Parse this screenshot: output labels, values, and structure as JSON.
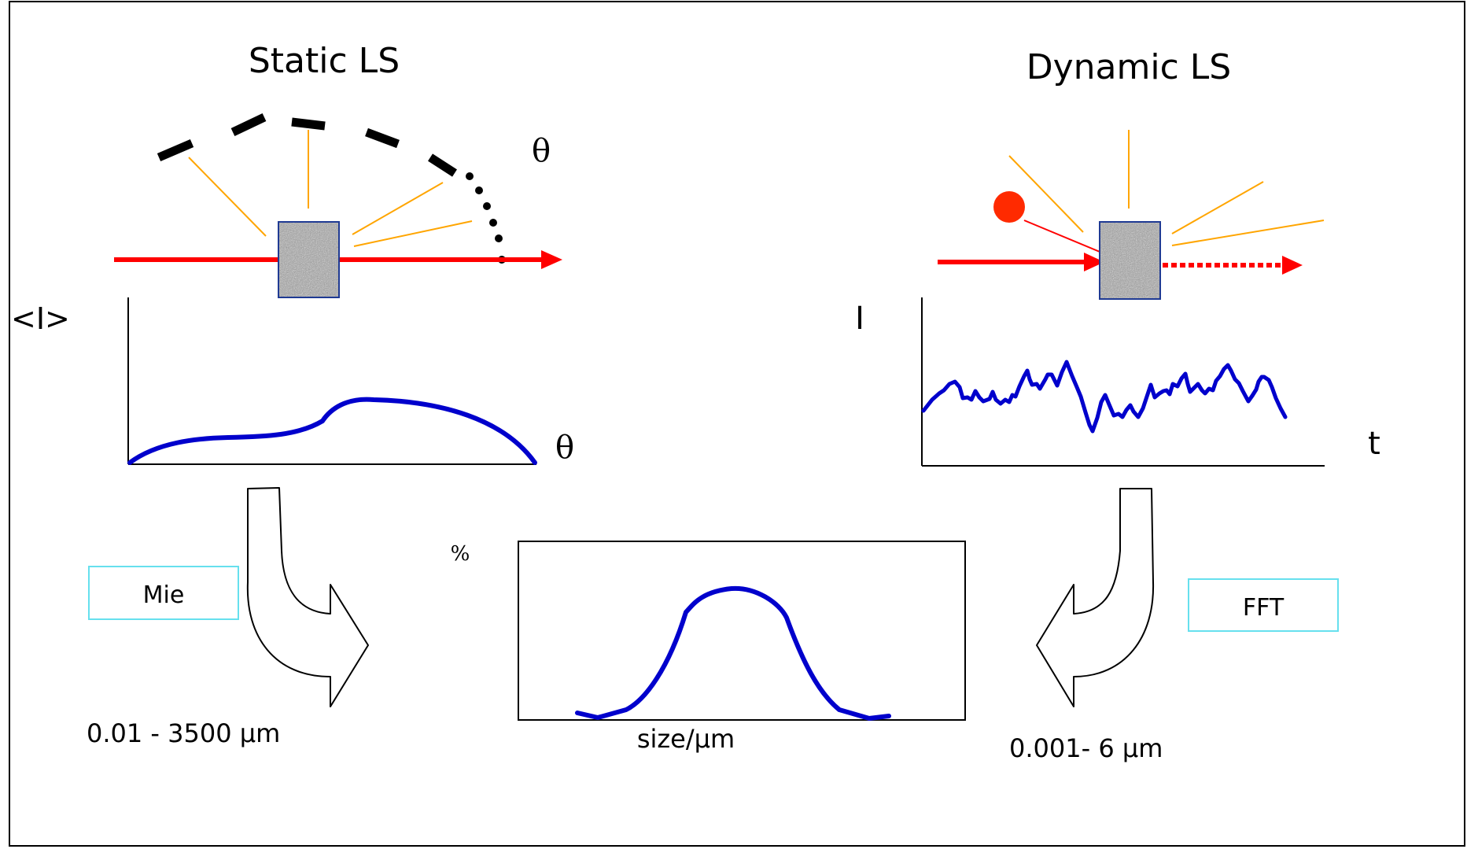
{
  "static_ls": {
    "title": "Static LS",
    "angle_symbol": "θ",
    "y_axis_label": "<I>",
    "x_axis_label": "θ",
    "method_label": "Mie",
    "range_label": "0.01 - 3500 µm"
  },
  "dynamic_ls": {
    "title": "Dynamic LS",
    "y_axis_label": "I",
    "x_axis_label": "t",
    "method_label": "FFT",
    "range_label": "0.001- 6 µm"
  },
  "distribution": {
    "y_axis_label": "%",
    "x_axis_label": "size/µm"
  },
  "colors": {
    "frame": "#000000",
    "laser": "#ff0000",
    "scatter_ray": "#ffa500",
    "curve": "#0000cc",
    "particle": "#ff2a00",
    "box_border": "#66e0ee",
    "sample_cell_border": "#1f3a93",
    "sample_cell_fill": "#9a9a9a"
  },
  "icons": {
    "sample_cell": "granular-sample-cell-icon",
    "particle": "particle-dot-icon"
  }
}
